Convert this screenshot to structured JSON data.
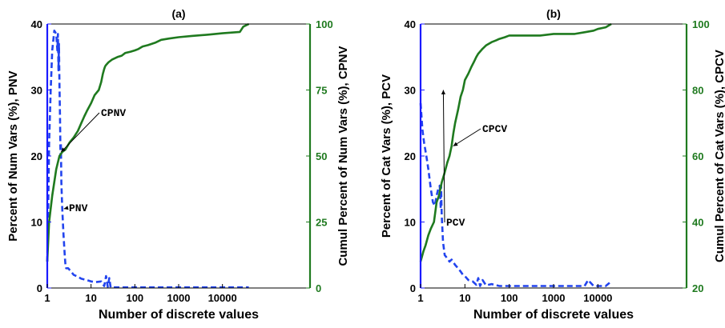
{
  "chart_data": [
    {
      "title": "(a)",
      "type": "line",
      "xscale": "log",
      "xlim": [
        1,
        1000000
      ],
      "xticks": [
        1,
        10,
        100,
        1000,
        10000
      ],
      "xtick_labels": [
        "1",
        "10",
        "100",
        "1000",
        "10000"
      ],
      "xlabel": "Number of discrete values",
      "ylabel_left": "Percent of Num Vars (%), PNV",
      "ylabel_right": "Cumul Percent of Num Vars (%), CPNV",
      "ylim_left": [
        0,
        40
      ],
      "ylim_right": [
        0,
        100
      ],
      "yticks_left": [
        "0",
        "10",
        "20",
        "30",
        "40"
      ],
      "yticks_right": [
        "0",
        "25",
        "50",
        "75",
        "100"
      ],
      "colors": {
        "left_axis": "#1a1aff",
        "right_axis": "#1f7a1f",
        "pnv": "#2244ee",
        "cpnv": "#1f7a1f"
      },
      "series": [
        {
          "name": "PNV",
          "axis": "left",
          "style": "dashed",
          "x": [
            1,
            1.05,
            1.1,
            1.2,
            1.3,
            1.45,
            1.6,
            1.7,
            1.75,
            1.8,
            1.85,
            1.9,
            1.95,
            2.0,
            2.05,
            2.1,
            2.2,
            2.35,
            2.5,
            2.6,
            2.7,
            3,
            3.5,
            4,
            5,
            6,
            8,
            10,
            13,
            17,
            20,
            22,
            24,
            26,
            28,
            30,
            50,
            100,
            300,
            1000,
            3000,
            10000,
            40000
          ],
          "y": [
            4,
            12,
            22,
            30,
            36,
            39,
            38.5,
            36,
            38.5,
            33,
            37,
            31,
            26,
            20,
            22,
            16,
            12,
            8,
            5,
            3.5,
            3,
            3,
            2.5,
            2,
            1.7,
            1.4,
            1.2,
            1.0,
            0.9,
            1.0,
            0.3,
            1.8,
            0.2,
            1.5,
            0.1,
            0.1,
            0.1,
            0.1,
            0.1,
            0.1,
            0.1,
            0.1,
            0.1
          ]
        },
        {
          "name": "CPNV",
          "axis": "right",
          "style": "solid",
          "x": [
            1,
            1.1,
            1.3,
            1.6,
            1.9,
            2.2,
            2.6,
            3.2,
            4,
            5,
            6,
            7,
            8,
            10,
            12,
            15,
            17,
            18.5,
            20,
            21,
            22,
            25,
            30,
            40,
            50,
            60,
            80,
            100,
            120,
            150,
            200,
            300,
            400,
            600,
            1000,
            2000,
            5000,
            10000,
            25000,
            30000,
            40000
          ],
          "y": [
            10,
            25,
            35,
            45,
            50,
            51.5,
            52.5,
            55,
            57,
            59.5,
            62.5,
            65,
            67,
            70,
            73,
            75,
            78,
            81,
            83,
            84,
            84.5,
            85.5,
            86.5,
            87.5,
            88,
            89,
            89.5,
            90,
            90.5,
            91.5,
            92,
            93,
            94,
            94.5,
            95,
            95.5,
            96,
            96.5,
            97,
            99,
            100
          ]
        }
      ],
      "annotations": [
        {
          "text": "CPNV",
          "points_to": [
            1.9,
            51.5
          ]
        },
        {
          "text": "PNV",
          "points_to": [
            2.2,
            12
          ]
        }
      ]
    },
    {
      "title": "(b)",
      "type": "line",
      "xscale": "log",
      "xlim": [
        1,
        1000000
      ],
      "xticks": [
        1,
        10,
        100,
        1000,
        10000
      ],
      "xtick_labels": [
        "1",
        "10",
        "100",
        "1000",
        "10000"
      ],
      "xlabel": "Number of discrete values",
      "ylabel_left": "Percent of Cat Vars (%), PCV",
      "ylabel_right": "Cumul Percent of Cat Vars (%), CPCV",
      "ylim_left": [
        0,
        40
      ],
      "ylim_right": [
        20,
        100
      ],
      "yticks_left": [
        "0",
        "10",
        "20",
        "30",
        "40"
      ],
      "yticks_right": [
        "20",
        "40",
        "60",
        "80",
        "100"
      ],
      "colors": {
        "left_axis": "#1a1aff",
        "right_axis": "#1f7a1f",
        "pcv": "#2244ee",
        "ccpcv": "#1f7a1f"
      },
      "series": [
        {
          "name": "PCV",
          "axis": "left",
          "style": "dashed",
          "x": [
            1,
            1.1,
            1.2,
            1.35,
            1.5,
            1.7,
            1.9,
            2.1,
            2.3,
            2.5,
            2.7,
            2.85,
            2.9,
            3,
            3.2,
            3.5,
            4,
            4.5,
            5,
            6,
            7,
            8,
            9,
            10,
            12,
            15,
            18,
            20,
            22,
            25,
            30,
            40,
            60,
            100,
            200,
            500,
            1000,
            3000,
            5000,
            6000,
            8000,
            10000,
            15000,
            20000
          ],
          "y": [
            28,
            24,
            22,
            20,
            18,
            15,
            13,
            12.5,
            14,
            15,
            15.5,
            12,
            15.5,
            11,
            7,
            5,
            4.5,
            4,
            4.3,
            3.5,
            3,
            2.5,
            2,
            1.8,
            1.2,
            1,
            0.5,
            1.5,
            0.3,
            1.2,
            0.4,
            0.6,
            0.3,
            0.3,
            0.3,
            0.3,
            0.3,
            0.3,
            0.3,
            1.2,
            0.3,
            0.3,
            0.3,
            1.0
          ]
        },
        {
          "name": "CPCV",
          "axis": "right",
          "style": "solid",
          "x": [
            1,
            1.15,
            1.3,
            1.5,
            1.7,
            2,
            2.3,
            2.6,
            3,
            3.5,
            4,
            4.5,
            5,
            5.5,
            6,
            7,
            8,
            9,
            10,
            12,
            14,
            16,
            18,
            20,
            25,
            30,
            40,
            50,
            60,
            80,
            100,
            200,
            300,
            500,
            1000,
            2000,
            3000,
            5000,
            8000,
            10000,
            15000,
            20000
          ],
          "y": [
            28,
            31,
            33,
            36,
            38,
            40,
            46,
            48,
            52,
            55,
            58,
            60,
            63,
            67,
            70,
            74,
            78,
            80,
            83,
            85,
            87,
            88.5,
            90,
            91,
            92.5,
            93.5,
            94.5,
            95,
            95.5,
            96,
            96.5,
            96.5,
            96.5,
            96.5,
            97,
            97,
            97,
            97.5,
            98,
            98.5,
            99,
            100
          ]
        }
      ],
      "annotations": [
        {
          "text": "CPCV",
          "points_to": [
            5,
            63
          ]
        },
        {
          "text": "PCV",
          "points_to": [
            3,
            30
          ]
        }
      ]
    }
  ]
}
